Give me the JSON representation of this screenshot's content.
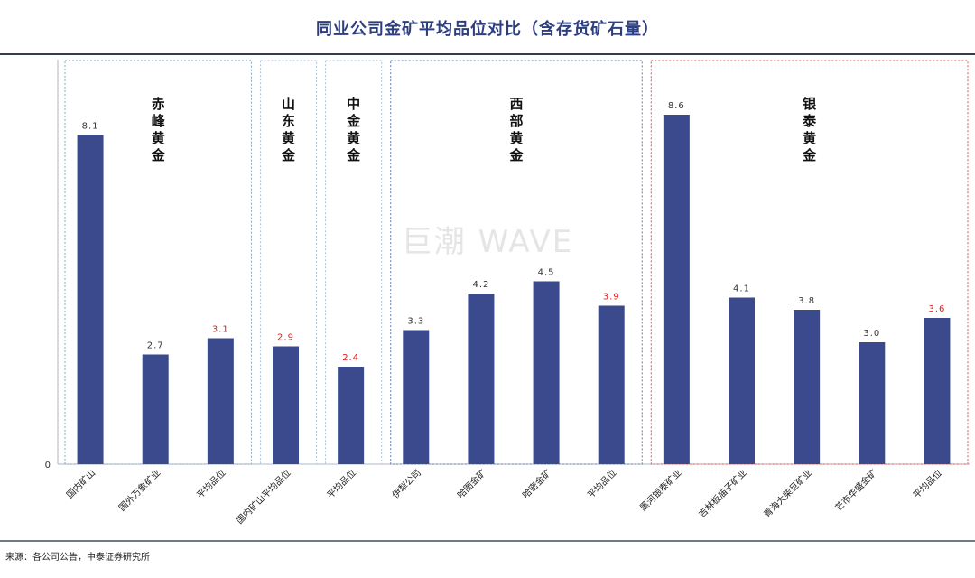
{
  "chart_data": {
    "type": "bar",
    "title": "同业公司金矿平均品位对比（含存货矿石量）",
    "categories": [
      "国内矿山",
      "国外万象矿业",
      "平均品位",
      "国内矿山平均品位",
      "平均品位",
      "伊犁公司",
      "哈图金矿",
      "哈密金矿",
      "平均品位",
      "黑河银泰矿业",
      "吉林板庙子矿业",
      "青海大柴旦矿业",
      "芒市华盛金矿",
      "平均品位"
    ],
    "values": [
      8.1,
      2.7,
      3.1,
      2.9,
      2.4,
      3.3,
      4.2,
      4.5,
      3.9,
      8.6,
      4.1,
      3.8,
      3.0,
      3.6
    ],
    "value_labels": [
      "8.1",
      "2.7",
      "3.1",
      "2.9",
      "2.4",
      "3.3",
      "4.2",
      "4.5",
      "3.9",
      "8.6",
      "4.1",
      "3.8",
      "3.0",
      "3.6"
    ],
    "highlight_average_labels": [
      false,
      false,
      true,
      true,
      true,
      false,
      false,
      false,
      true,
      false,
      false,
      false,
      false,
      true
    ],
    "groups": [
      {
        "name": "赤峰黄金",
        "start": 0,
        "end": 2
      },
      {
        "name": "山东黄金",
        "start": 3,
        "end": 3
      },
      {
        "name": "中金黄金",
        "start": 4,
        "end": 4
      },
      {
        "name": "西部黄金",
        "start": 5,
        "end": 8
      },
      {
        "name": "银泰黄金",
        "start": 9,
        "end": 13
      }
    ],
    "y_tick_label": "0",
    "ylim": [
      0,
      10
    ],
    "grid": false,
    "legend": "none",
    "bar_color": "#3a4a8c",
    "highlight_label_color": "#e02020",
    "normal_label_color": "#333333"
  },
  "watermark": "巨潮 WAVE",
  "source": "来源：各公司公告，中泰证券研究所"
}
